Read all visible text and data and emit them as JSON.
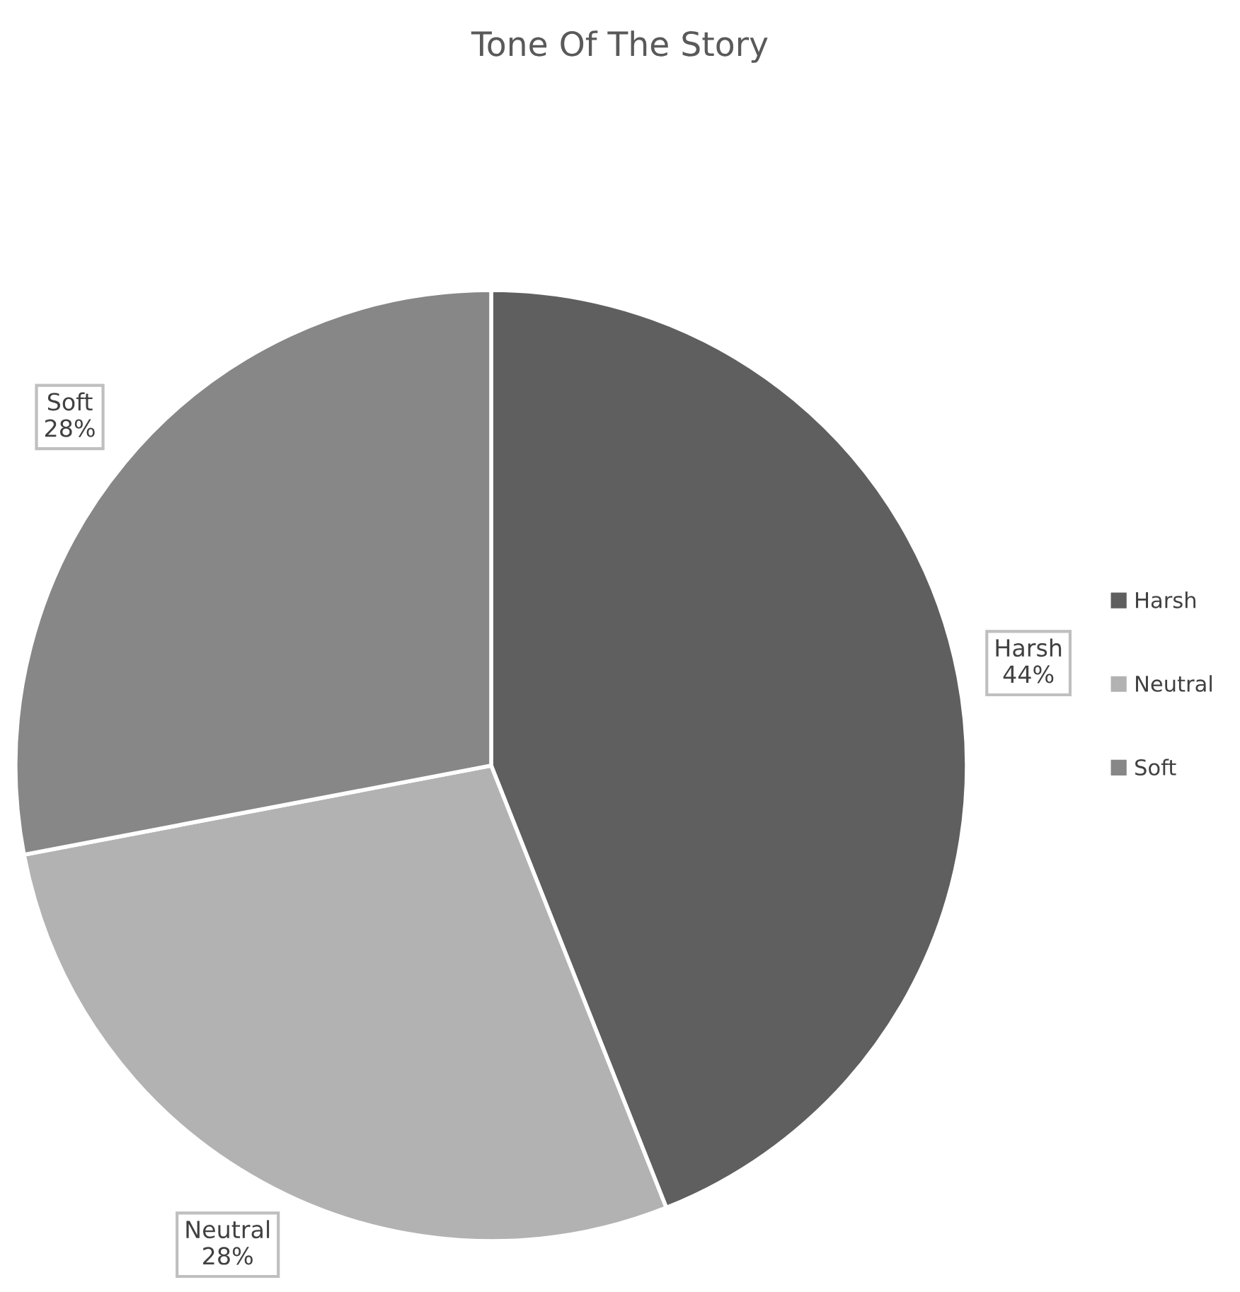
{
  "chart_data": {
    "type": "pie",
    "title": "Tone Of The Story",
    "categories": [
      "Harsh",
      "Neutral",
      "Soft"
    ],
    "values": [
      44,
      28,
      28
    ],
    "value_labels": [
      "44%",
      "28%",
      "28%"
    ],
    "colors": [
      "#5f5f5f",
      "#b2b2b2",
      "#878787"
    ],
    "legend": "right"
  }
}
